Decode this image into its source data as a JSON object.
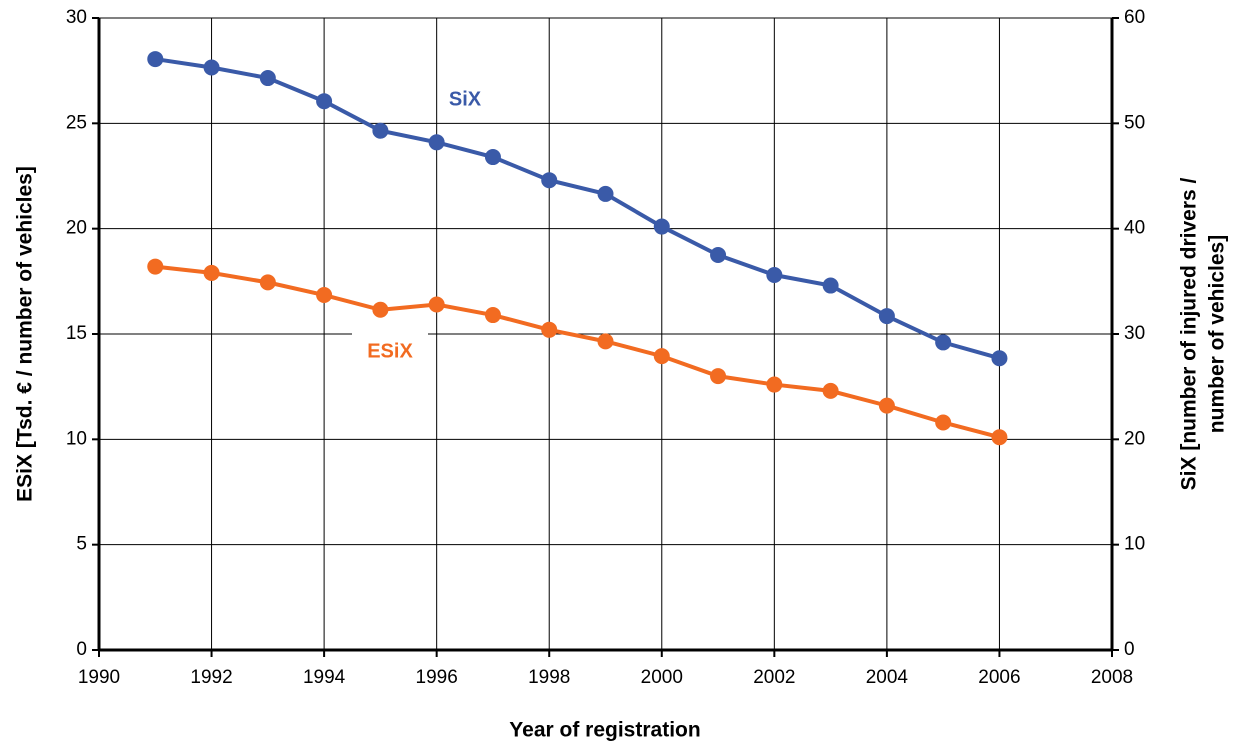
{
  "chart_data": {
    "type": "line",
    "x_label": "Year of registration",
    "y_label": "ESiX  [Tsd. € / number of vehicles]",
    "y2_label": [
      "SiX  [number of injured drivers /",
      "number of vehicles]"
    ],
    "x": [
      1991,
      1992,
      1993,
      1994,
      1995,
      1996,
      1997,
      1998,
      1999,
      2000,
      2001,
      2002,
      2003,
      2004,
      2005,
      2006
    ],
    "series": [
      {
        "name": "SiX",
        "color": "#3a5aa8",
        "axis": "y2",
        "values": [
          56.1,
          55.3,
          54.3,
          52.1,
          49.3,
          48.2,
          46.8,
          44.6,
          43.3,
          40.2,
          37.5,
          35.6,
          34.6,
          31.7,
          29.2,
          27.7
        ]
      },
      {
        "name": "ESiX",
        "color": "#f26b21",
        "axis": "y",
        "values": [
          18.2,
          17.9,
          17.45,
          16.85,
          16.15,
          16.4,
          15.9,
          15.2,
          14.65,
          13.95,
          13.0,
          12.6,
          12.3,
          11.6,
          10.8,
          10.1
        ]
      }
    ],
    "xlim": [
      1990,
      2008
    ],
    "xticks": [
      1990,
      1992,
      1994,
      1996,
      1998,
      2000,
      2002,
      2004,
      2006,
      2008
    ],
    "ylim": [
      0,
      30
    ],
    "yticks": [
      0,
      5,
      10,
      15,
      20,
      25,
      30
    ],
    "y2lim": [
      0,
      60
    ],
    "y2ticks": [
      0,
      10,
      20,
      30,
      40,
      50,
      60
    ],
    "grid": true
  }
}
